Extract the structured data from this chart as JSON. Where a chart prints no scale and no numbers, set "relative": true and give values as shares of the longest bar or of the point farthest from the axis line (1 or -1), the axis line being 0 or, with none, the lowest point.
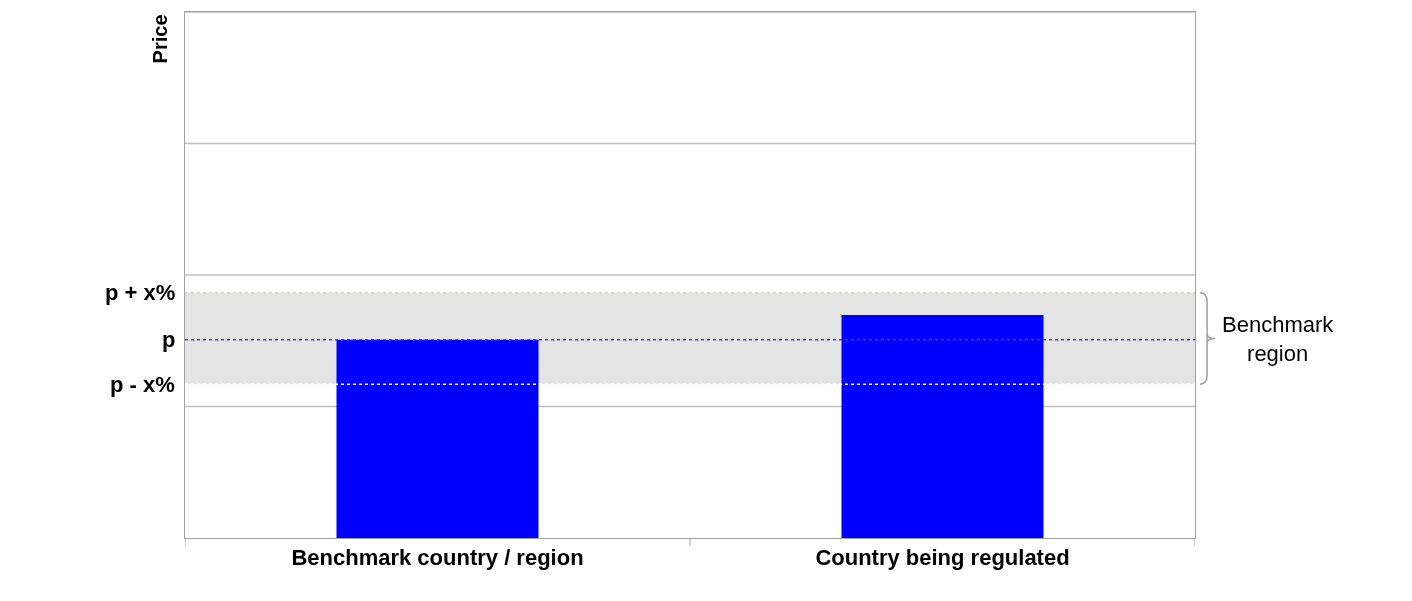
{
  "chart_data": {
    "type": "bar",
    "relative": true,
    "annotations": [
      "Price"
    ],
    "categories": [
      "Benchmark country / region",
      "Country being regulated"
    ],
    "values": [
      0.89,
      1.0
    ],
    "color": "#0000ff",
    "ref_lines": [
      {
        "axis": "y",
        "value": 1.1,
        "label": "p + x%",
        "color": "#d8d8c0",
        "line_style": "dotted"
      },
      {
        "axis": "y",
        "value": 0.89,
        "label": "p",
        "color": "#4040c0",
        "line_style": "dotted"
      },
      {
        "axis": "y",
        "value": 0.69,
        "label": "p - x%",
        "color": "#ffffff",
        "line_style": "dotted"
      },
      {
        "axis": "y",
        "value": 0.59,
        "label": null,
        "color": "#c0c0c0",
        "line_style": "solid"
      },
      {
        "axis": "y",
        "value": 1.18,
        "label": null,
        "color": "#c0c0c0",
        "line_style": "solid"
      },
      {
        "axis": "y",
        "value": 1.77,
        "label": null,
        "color": "#c0c0c0",
        "line_style": "solid"
      },
      {
        "axis": "y",
        "value": 2.36,
        "label": null,
        "color": "#c0c0c0",
        "line_style": "solid"
      }
    ],
    "bands": [
      {
        "axis": "y",
        "from": 0.69,
        "to": 1.1,
        "label": "Benchmark region",
        "color": "#e4e4e4"
      }
    ]
  }
}
